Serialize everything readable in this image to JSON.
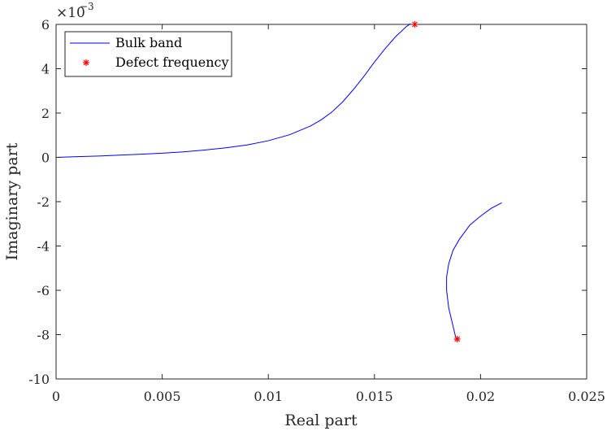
{
  "chart_data": {
    "type": "line",
    "xlabel": "Real part",
    "ylabel": "Imaginary part",
    "xlim": [
      0,
      0.025
    ],
    "ylim": [
      -0.01,
      0.006
    ],
    "x_ticks": [
      0,
      0.005,
      0.01,
      0.015,
      0.02,
      0.025
    ],
    "x_tick_labels": [
      "0",
      "0.005",
      "0.01",
      "0.015",
      "0.02",
      "0.025"
    ],
    "y_ticks": [
      0.006,
      0.004,
      0.002,
      0,
      -0.002,
      -0.004,
      -0.006,
      -0.008,
      -0.01
    ],
    "y_tick_labels": [
      "6",
      "4",
      "2",
      "0",
      "-2",
      "-4",
      "-6",
      "-8",
      "-10"
    ],
    "y_exponent": {
      "base": "×10",
      "power": "−3"
    },
    "grid": false,
    "legend_position": "top-left",
    "colors": {
      "bulk": "#0000ff",
      "defect": "#ff0000",
      "axes": "#262626"
    },
    "series": [
      {
        "name": "Bulk band",
        "marker": "line",
        "segments": [
          {
            "x": [
              0.0,
              0.001,
              0.002,
              0.003,
              0.004,
              0.005,
              0.006,
              0.007,
              0.008,
              0.009,
              0.01,
              0.011,
              0.012,
              0.0125,
              0.013,
              0.0135,
              0.014,
              0.0145,
              0.015,
              0.0155,
              0.016,
              0.0165,
              0.0167
            ],
            "y": [
              0.0,
              3e-05,
              6e-05,
              0.0001,
              0.00014,
              0.00019,
              0.00025,
              0.00033,
              0.00043,
              0.00056,
              0.00075,
              0.00102,
              0.00142,
              0.0017,
              0.00205,
              0.0025,
              0.00305,
              0.00365,
              0.0043,
              0.0049,
              0.00545,
              0.0059,
              0.00603
            ]
          },
          {
            "x": [
              0.021,
              0.0205,
              0.02,
              0.0195,
              0.019,
              0.0187,
              0.0185,
              0.0184,
              0.0184,
              0.0185,
              0.0187,
              0.01885
            ],
            "y": [
              -0.00205,
              -0.0023,
              -0.00265,
              -0.00305,
              -0.0037,
              -0.0042,
              -0.0048,
              -0.0054,
              -0.006,
              -0.0068,
              -0.0076,
              -0.0082
            ]
          }
        ]
      },
      {
        "name": "Defect frequency",
        "marker": "*",
        "x": [
          0.0169,
          0.0189
        ],
        "y": [
          0.006,
          -0.0082
        ]
      }
    ]
  }
}
